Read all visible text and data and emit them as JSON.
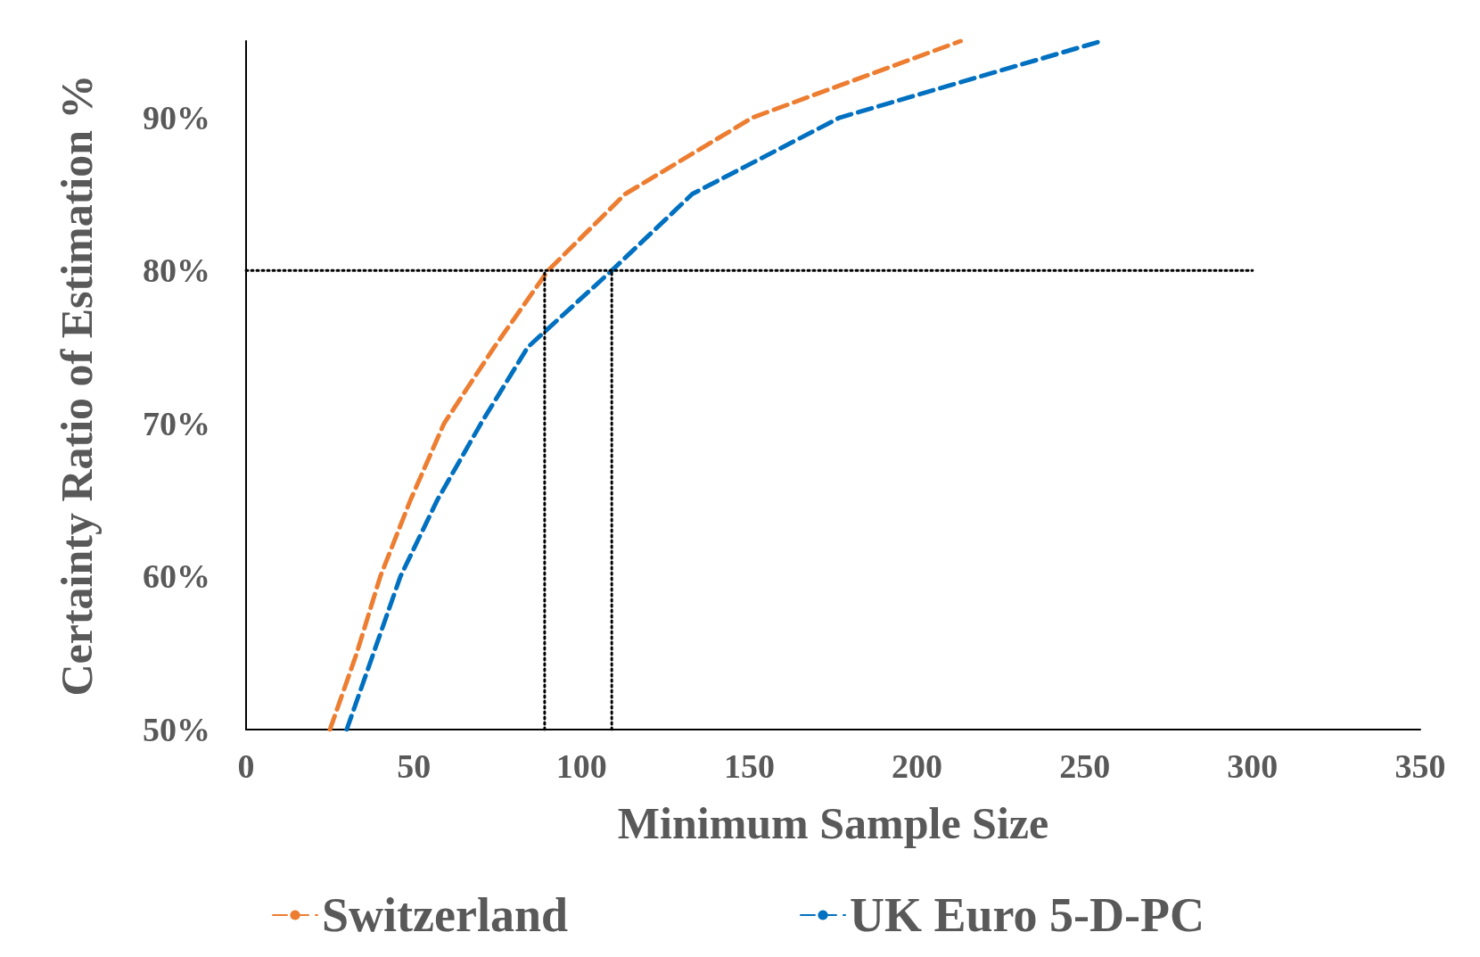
{
  "chart_data": {
    "type": "line",
    "xlabel": "Minimum Sample Size",
    "ylabel": "Certainty Ratio of Estimation %",
    "xlim": [
      0,
      350
    ],
    "xticks": [
      0,
      50,
      100,
      150,
      200,
      250,
      300,
      350
    ],
    "ylim": [
      50,
      95
    ],
    "yticks": [
      {
        "value": 50,
        "label": "50%"
      },
      {
        "value": 60,
        "label": "60%"
      },
      {
        "value": 70,
        "label": "70%"
      },
      {
        "value": 80,
        "label": "80%"
      },
      {
        "value": 90,
        "label": "90%"
      }
    ],
    "grid": false,
    "legend": "bottom",
    "marker": "none",
    "line_style": "dashed",
    "series": [
      {
        "name": "Switzerland",
        "color": "#ed7d31",
        "x": [
          25,
          33,
          40,
          49,
          59,
          74,
          90,
          113,
          151,
          213
        ],
        "values": [
          50,
          55,
          60,
          65,
          70,
          75,
          80,
          85,
          90,
          95
        ]
      },
      {
        "name": "UK Euro 5-D-PC",
        "color": "#0070c0",
        "x": [
          30,
          38,
          46,
          57,
          70,
          84,
          109,
          133,
          177,
          255
        ],
        "values": [
          50,
          55,
          60,
          65,
          70,
          75,
          80,
          85,
          90,
          95
        ]
      },
      {
        "color": "#000000",
        "line_style": "dotted",
        "x": [
          0,
          300
        ],
        "values": [
          80,
          80
        ]
      },
      {
        "color": "#000000",
        "line_style": "dotted",
        "x": [
          89,
          89
        ],
        "values": [
          50,
          80
        ]
      },
      {
        "color": "#000000",
        "line_style": "dotted",
        "x": [
          109,
          109
        ],
        "values": [
          50,
          80
        ]
      }
    ]
  }
}
